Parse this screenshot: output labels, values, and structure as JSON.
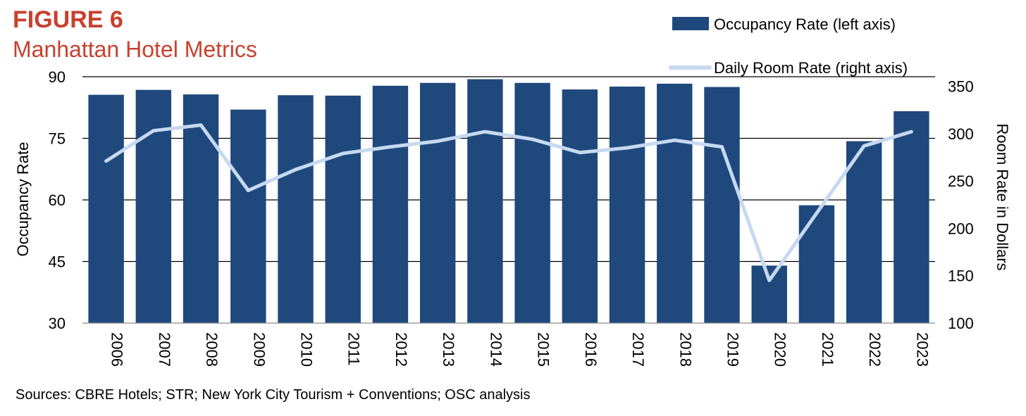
{
  "figure_label": "FIGURE 6",
  "source_note": "Sources: CBRE Hotels; STR; New York City Tourism + Conventions; OSC analysis",
  "colors": {
    "title": "#C8402E",
    "bar": "#1F497D",
    "line": "#C6D9F0",
    "grid": "#000000"
  },
  "chart_data": {
    "type": "bar",
    "title": "Manhattan Hotel Metrics",
    "categories": [
      "2006",
      "2007",
      "2008",
      "2009",
      "2010",
      "2011",
      "2012",
      "2013",
      "2014",
      "2015",
      "2016",
      "2017",
      "2018",
      "2019",
      "2020",
      "2021",
      "2022",
      "2023"
    ],
    "series": [
      {
        "name": "Occupancy Rate (left axis)",
        "type": "bar",
        "axis": "left",
        "values": [
          85.6,
          86.8,
          85.7,
          82.0,
          85.5,
          85.4,
          87.8,
          88.5,
          89.4,
          88.5,
          86.9,
          87.6,
          88.3,
          87.5,
          44.0,
          58.7,
          74.3,
          81.6
        ]
      },
      {
        "name": "Daily Room Rate (right axis)",
        "type": "line",
        "axis": "right",
        "values": [
          271,
          303,
          309,
          240,
          262,
          279,
          286,
          292,
          302,
          294,
          280,
          285,
          293,
          286,
          145,
          216,
          287,
          302
        ]
      }
    ],
    "ylabel": "Occupancy Rate",
    "y2label": "Room Rate in Dollars",
    "ylim": [
      30,
      90
    ],
    "yticks": [
      30,
      45,
      60,
      75,
      90
    ],
    "y2lim": [
      100,
      360
    ],
    "y2ticks": [
      100,
      150,
      200,
      250,
      300,
      350
    ],
    "legend_position": "top-right",
    "grid": true
  }
}
